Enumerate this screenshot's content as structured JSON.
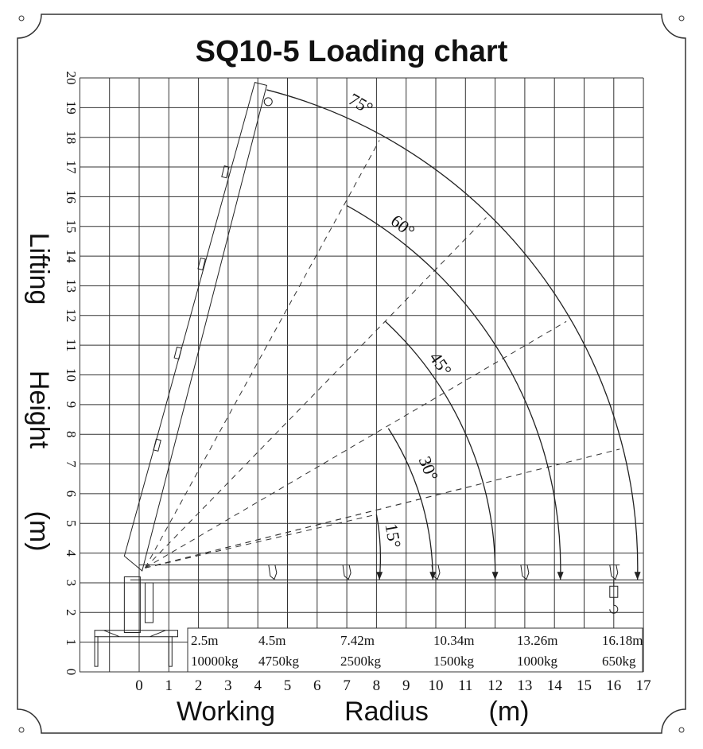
{
  "title": "SQ10-5 Loading chart",
  "y_axis": {
    "title": [
      "Lifting",
      "Height",
      "(m)"
    ],
    "ticks": [
      0,
      1,
      2,
      3,
      4,
      5,
      6,
      7,
      8,
      9,
      10,
      11,
      12,
      13,
      14,
      15,
      16,
      17,
      18,
      19,
      20
    ]
  },
  "x_axis": {
    "title": [
      "Working",
      "Radius",
      "(m)"
    ],
    "ticks": [
      0,
      1,
      2,
      3,
      4,
      5,
      6,
      7,
      8,
      9,
      10,
      11,
      12,
      13,
      14,
      15,
      16,
      17
    ]
  },
  "angles": [
    "75°",
    "60°",
    "45°",
    "30°",
    "15°"
  ],
  "load_table": [
    {
      "radius": "2.5m",
      "load": "10000kg"
    },
    {
      "radius": "4.5m",
      "load": "4750kg"
    },
    {
      "radius": "7.42m",
      "load": "2500kg"
    },
    {
      "radius": "10.34m",
      "load": "1500kg"
    },
    {
      "radius": "13.26m",
      "load": "1000kg"
    },
    {
      "radius": "16.18m",
      "load": "650kg"
    }
  ]
}
